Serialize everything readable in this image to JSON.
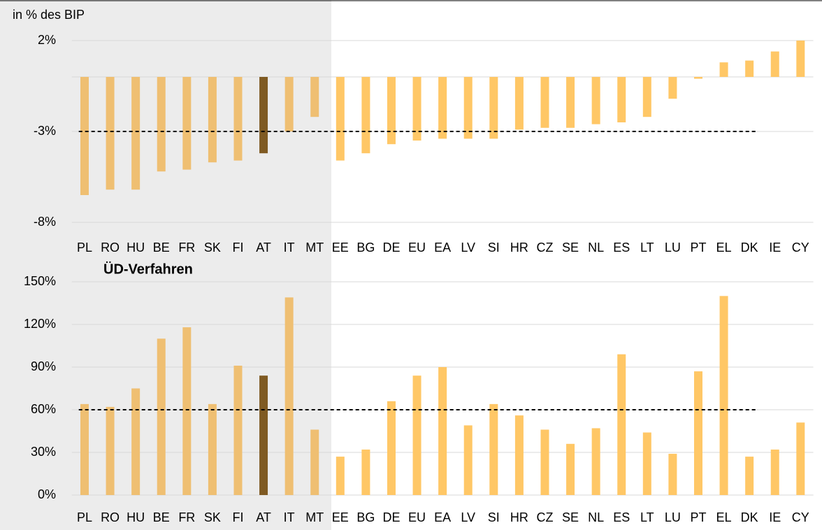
{
  "chart_data": [
    {
      "type": "bar",
      "y_label": "in % des BIP",
      "categories": [
        "PL",
        "RO",
        "HU",
        "BE",
        "FR",
        "SK",
        "FI",
        "AT",
        "IT",
        "MT",
        "EE",
        "BG",
        "DE",
        "EU",
        "EA",
        "LV",
        "SI",
        "HR",
        "CZ",
        "SE",
        "NL",
        "ES",
        "LT",
        "LU",
        "PT",
        "EL",
        "DK",
        "IE",
        "CY"
      ],
      "values": [
        -6.5,
        -6.2,
        -6.2,
        -5.2,
        -5.1,
        -4.7,
        -4.6,
        -4.2,
        -3.0,
        -2.2,
        -4.6,
        -4.2,
        -3.7,
        -3.5,
        -3.4,
        -3.4,
        -3.4,
        -2.9,
        -2.8,
        -2.8,
        -2.6,
        -2.5,
        -2.2,
        -1.2,
        -0.1,
        0.8,
        0.9,
        1.4,
        2.0
      ],
      "colors": [
        "#efbf72",
        "#efbf72",
        "#efbf72",
        "#efbf72",
        "#efbf72",
        "#efbf72",
        "#efbf72",
        "#7f5a22",
        "#efbf72",
        "#efbf72",
        "#ffc766",
        "#ffc766",
        "#ffc766",
        "#ffc766",
        "#ffc766",
        "#ffc766",
        "#ffc766",
        "#ffc766",
        "#ffc766",
        "#ffc766",
        "#ffc766",
        "#ffc766",
        "#ffc766",
        "#ffc766",
        "#ffc766",
        "#ffc766",
        "#ffc766",
        "#ffc766",
        "#ffc766"
      ],
      "ylim": [
        -8,
        2
      ],
      "yticks": [
        {
          "value": 2,
          "label": "2%"
        },
        {
          "value": -3,
          "label": "-3%"
        },
        {
          "value": -8,
          "label": "-8%"
        }
      ],
      "reference_line": -3,
      "grid": true
    },
    {
      "type": "bar",
      "title": "ÜD-Verfahren",
      "categories": [
        "PL",
        "RO",
        "HU",
        "BE",
        "FR",
        "SK",
        "FI",
        "AT",
        "IT",
        "MT",
        "EE",
        "BG",
        "DE",
        "EU",
        "EA",
        "LV",
        "SI",
        "HR",
        "CZ",
        "SE",
        "NL",
        "ES",
        "LT",
        "LU",
        "PT",
        "EL",
        "DK",
        "IE",
        "CY"
      ],
      "values": [
        64,
        62,
        75,
        110,
        118,
        64,
        91,
        84,
        139,
        46,
        27,
        32,
        66,
        84,
        90,
        49,
        64,
        56,
        46,
        36,
        47,
        99,
        44,
        29,
        87,
        140,
        27,
        32,
        51
      ],
      "colors": [
        "#efbf72",
        "#efbf72",
        "#efbf72",
        "#efbf72",
        "#efbf72",
        "#efbf72",
        "#efbf72",
        "#7f5a22",
        "#efbf72",
        "#efbf72",
        "#ffc766",
        "#ffc766",
        "#ffc766",
        "#ffc766",
        "#ffc766",
        "#ffc766",
        "#ffc766",
        "#ffc766",
        "#ffc766",
        "#ffc766",
        "#ffc766",
        "#ffc766",
        "#ffc766",
        "#ffc766",
        "#ffc766",
        "#ffc766",
        "#ffc766",
        "#ffc766",
        "#ffc766"
      ],
      "ylim": [
        0,
        150
      ],
      "yticks": [
        {
          "value": 0,
          "label": "0%"
        },
        {
          "value": 30,
          "label": "30%"
        },
        {
          "value": 60,
          "label": "60%"
        },
        {
          "value": 90,
          "label": "90%"
        },
        {
          "value": 120,
          "label": "120%"
        },
        {
          "value": 150,
          "label": "150%"
        }
      ],
      "reference_line": 60,
      "grid": true
    }
  ]
}
